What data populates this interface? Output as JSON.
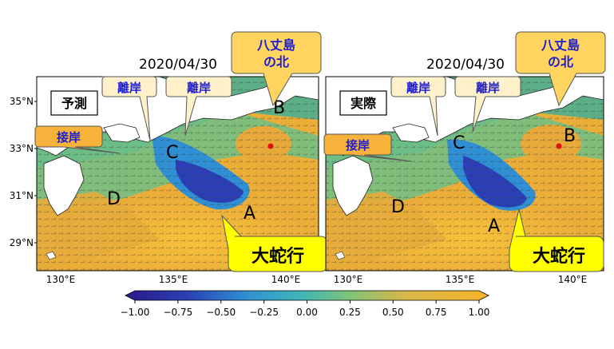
{
  "colors": {
    "ocean_warm": "#f2b233",
    "ocean_mid": "#6cc08a",
    "ocean_cool": "#2f8fd2",
    "ocean_cold": "#2a3fb3",
    "land": "#ffffff",
    "callout_cream": "#fff1c9",
    "callout_orange": "#f6b23a",
    "callout_yellow": "#ffff00",
    "label_blue": "#1c1cd0",
    "marker_red": "#e01010"
  },
  "panels": [
    {
      "date": "2020/04/30",
      "mode_label": "予測",
      "region_labels": {
        "A": "A",
        "B": "B",
        "C": "C",
        "D": "D"
      },
      "callouts": {
        "offshore": "離岸",
        "onshore": "接岸",
        "north_of": "八丈島",
        "north_of_2": "の北",
        "meander": "大蛇行"
      }
    },
    {
      "date": "2020/04/30",
      "mode_label": "実際",
      "region_labels": {
        "A": "A",
        "B": "B",
        "C": "C",
        "D": "D"
      },
      "callouts": {
        "offshore": "離岸",
        "onshore": "接岸",
        "north_of": "八丈島",
        "north_of_2": "の北",
        "meander": "大蛇行"
      }
    }
  ],
  "lat_ticks": [
    "35°N",
    "33°N",
    "31°N",
    "29°N"
  ],
  "lon_ticks": [
    "130°E",
    "135°E",
    "140°E"
  ],
  "colorbar": {
    "min": -1.0,
    "max": 1.0,
    "ticks": [
      "−1.00",
      "−0.75",
      "−0.50",
      "−0.25",
      "0.00",
      "0.25",
      "0.50",
      "0.75",
      "1.00"
    ],
    "extend": "both"
  }
}
